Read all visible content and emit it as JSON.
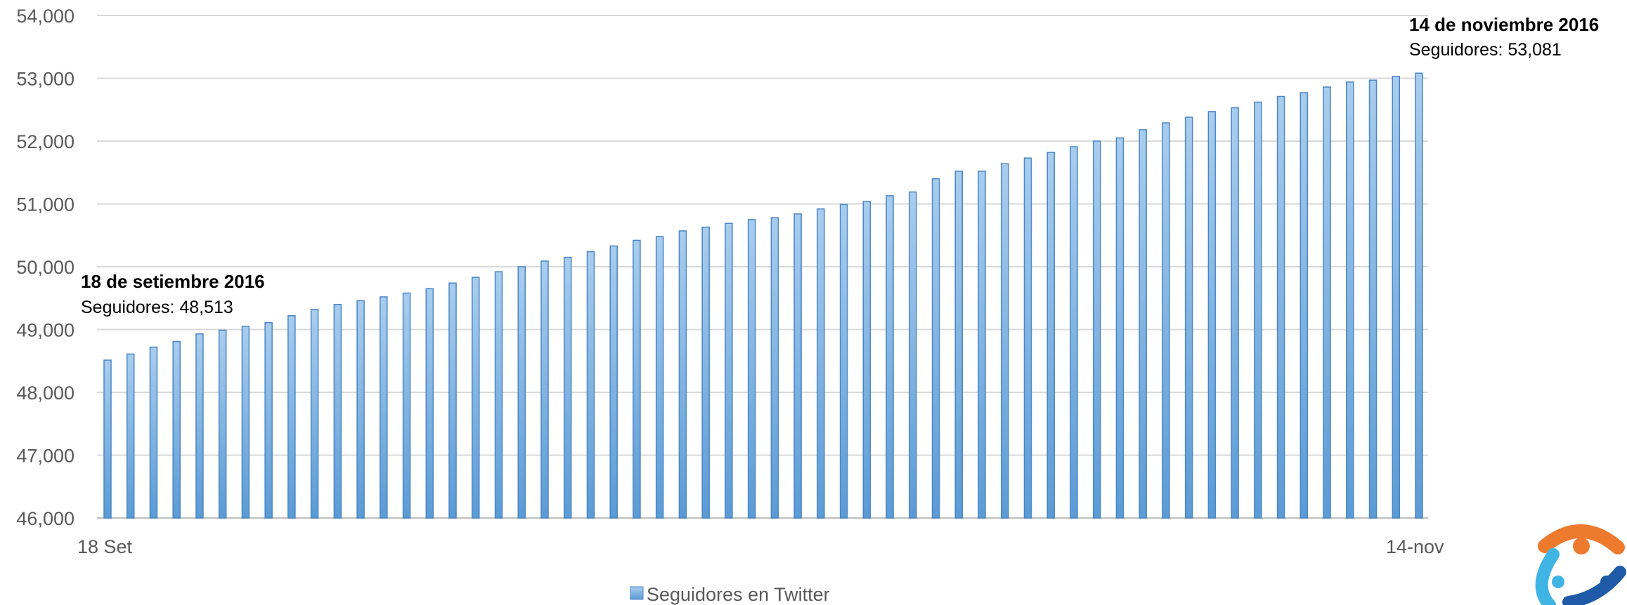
{
  "chart_data": {
    "type": "bar",
    "series": [
      {
        "name": "Seguidores en Twitter",
        "values": [
          48513,
          48610,
          48720,
          48810,
          48930,
          48990,
          49050,
          49110,
          49220,
          49320,
          49400,
          49460,
          49520,
          49580,
          49650,
          49740,
          49830,
          49920,
          50000,
          50090,
          50150,
          50240,
          50330,
          50420,
          50480,
          50570,
          50630,
          50690,
          50750,
          50780,
          50840,
          50920,
          50990,
          51040,
          51130,
          51190,
          51400,
          51520,
          51520,
          51640,
          51730,
          51820,
          51910,
          52000,
          52050,
          52180,
          52290,
          52380,
          52470,
          52530,
          52620,
          52710,
          52770,
          52860,
          52940,
          52970,
          53030,
          53081
        ]
      }
    ],
    "x_start_label": "18 Set",
    "x_end_label": "14-nov",
    "y_ticks": [
      "46,000",
      "47,000",
      "48,000",
      "49,000",
      "50,000",
      "51,000",
      "52,000",
      "53,000",
      "54,000"
    ],
    "ylim": [
      46000,
      54000
    ],
    "grid": true,
    "legend_position": "bottom",
    "colors": {
      "bar_top": "#9dc3e6",
      "bar_bottom": "#5b9bd5",
      "bar_stroke": "#4a86c5",
      "grid": "#d9d9d9"
    },
    "annotations": [
      {
        "title": "18 de setiembre 2016",
        "text": "Seguidores: 48,513"
      },
      {
        "title": "14 de noviembre 2016",
        "text": "Seguidores: 53,081"
      }
    ]
  }
}
